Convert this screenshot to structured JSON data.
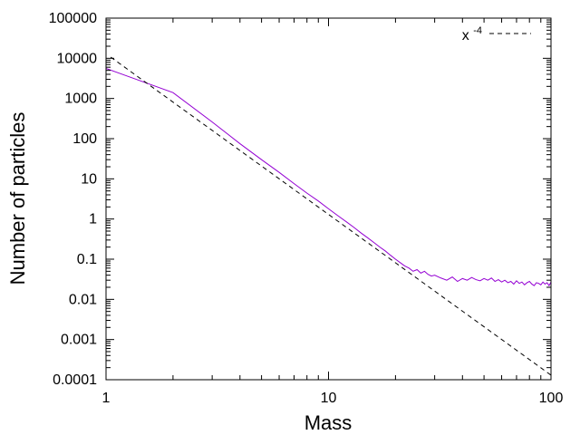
{
  "chart_data": {
    "type": "line",
    "xlabel": "Mass",
    "ylabel": "Number of particles",
    "x_scale": "log",
    "y_scale": "log",
    "xlim": [
      1,
      100
    ],
    "ylim": [
      0.0001,
      100000
    ],
    "x_ticks": [
      {
        "value": 1,
        "label": "1"
      },
      {
        "value": 10,
        "label": "10"
      },
      {
        "value": 100,
        "label": "100"
      }
    ],
    "y_ticks": [
      {
        "value": 0.0001,
        "label": "0.0001"
      },
      {
        "value": 0.001,
        "label": "0.001"
      },
      {
        "value": 0.01,
        "label": "0.01"
      },
      {
        "value": 0.1,
        "label": "0.1"
      },
      {
        "value": 1,
        "label": "1"
      },
      {
        "value": 10,
        "label": "10"
      },
      {
        "value": 100,
        "label": "100"
      },
      {
        "value": 1000,
        "label": "1000"
      },
      {
        "value": 10000,
        "label": "10000"
      },
      {
        "value": 100000,
        "label": "100000"
      }
    ],
    "grid": false,
    "legend_position": "top-right",
    "series": [
      {
        "color": "#9400d3",
        "style": "solid",
        "x": [
          1,
          2,
          3,
          4,
          5,
          6,
          7,
          8,
          9,
          10,
          11,
          12,
          13,
          14,
          15,
          16,
          17,
          18,
          19,
          20,
          21,
          22,
          23,
          24,
          25,
          26,
          27,
          28,
          29,
          30,
          32,
          34,
          36,
          38,
          40,
          42,
          44,
          46,
          48,
          50,
          52,
          54,
          56,
          58,
          60,
          62,
          64,
          66,
          68,
          70,
          72,
          74,
          76,
          78,
          80,
          82,
          84,
          86,
          88,
          90,
          92,
          94,
          96,
          98,
          100
        ],
        "y": [
          5600,
          1400,
          260,
          75,
          30,
          14.5,
          7.6,
          4.4,
          2.8,
          1.8,
          1.22,
          0.86,
          0.62,
          0.45,
          0.34,
          0.26,
          0.2,
          0.16,
          0.125,
          0.1,
          0.082,
          0.068,
          0.06,
          0.05,
          0.055,
          0.045,
          0.05,
          0.042,
          0.038,
          0.04,
          0.034,
          0.03,
          0.036,
          0.028,
          0.033,
          0.03,
          0.035,
          0.031,
          0.029,
          0.033,
          0.03,
          0.034,
          0.028,
          0.031,
          0.027,
          0.03,
          0.026,
          0.028,
          0.024,
          0.029,
          0.025,
          0.027,
          0.023,
          0.026,
          0.028,
          0.024,
          0.022,
          0.026,
          0.025,
          0.023,
          0.027,
          0.024,
          0.026,
          0.022,
          0.027
        ]
      },
      {
        "name": "x^-4",
        "color": "#000000",
        "style": "dashed",
        "function": "13000 * x^-4",
        "x": [
          1.05,
          2,
          5,
          10,
          20,
          50,
          100
        ],
        "y": [
          10695,
          812.5,
          20.8,
          1.3,
          0.0813,
          0.00208,
          0.00013
        ]
      }
    ],
    "legend": [
      {
        "base": "x",
        "exponent": "-4"
      }
    ]
  }
}
